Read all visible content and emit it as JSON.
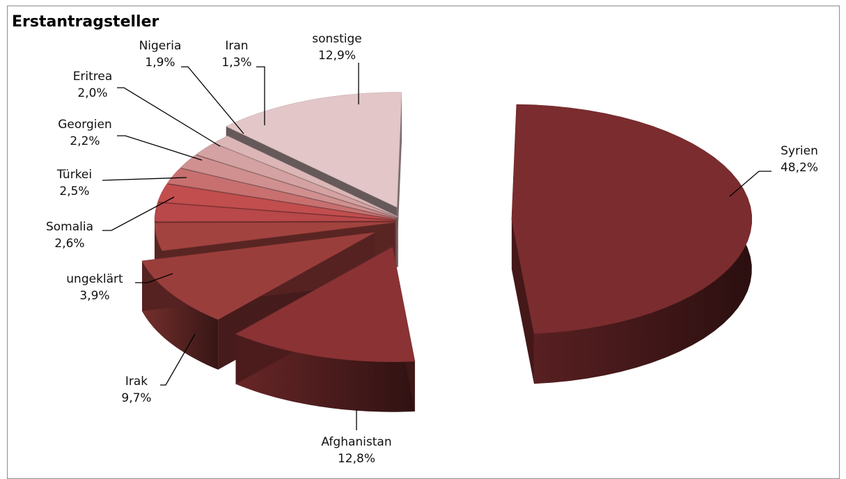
{
  "chart_data": {
    "type": "pie",
    "title": "Erstantragsteller",
    "series": [
      {
        "name": "",
        "values": [
          48.2,
          12.8,
          9.7,
          3.9,
          2.6,
          2.5,
          2.2,
          2.0,
          1.9,
          1.3,
          12.9
        ]
      }
    ],
    "categories": [
      "Syrien",
      "Afghanistan",
      "Irak",
      "ungeklärt",
      "Somalia",
      "Türkei",
      "Georgien",
      "Eritrea",
      "Nigeria",
      "Iran",
      "sonstige"
    ],
    "value_labels": [
      "48,2%",
      "12,8%",
      "9,7%",
      "3,9%",
      "2,6%",
      "2,5%",
      "2,2%",
      "2,0%",
      "1,9%",
      "1,3%",
      "12,9%"
    ],
    "style": "3d exploded pie",
    "colors": {
      "Syrien": "#7b2c2e",
      "Afghanistan": "#8a3234",
      "Irak": "#9a3e3c",
      "ungeklärt": "#a2433f",
      "Somalia": "#b8484a",
      "Türkei": "#c24e4e",
      "Georgien": "#c87070",
      "Eritrea": "#d09090",
      "Nigeria": "#d4a2a2",
      "Iran": "#dcb6b6",
      "sonstige": "#e2c6c8"
    },
    "legend": "none"
  }
}
